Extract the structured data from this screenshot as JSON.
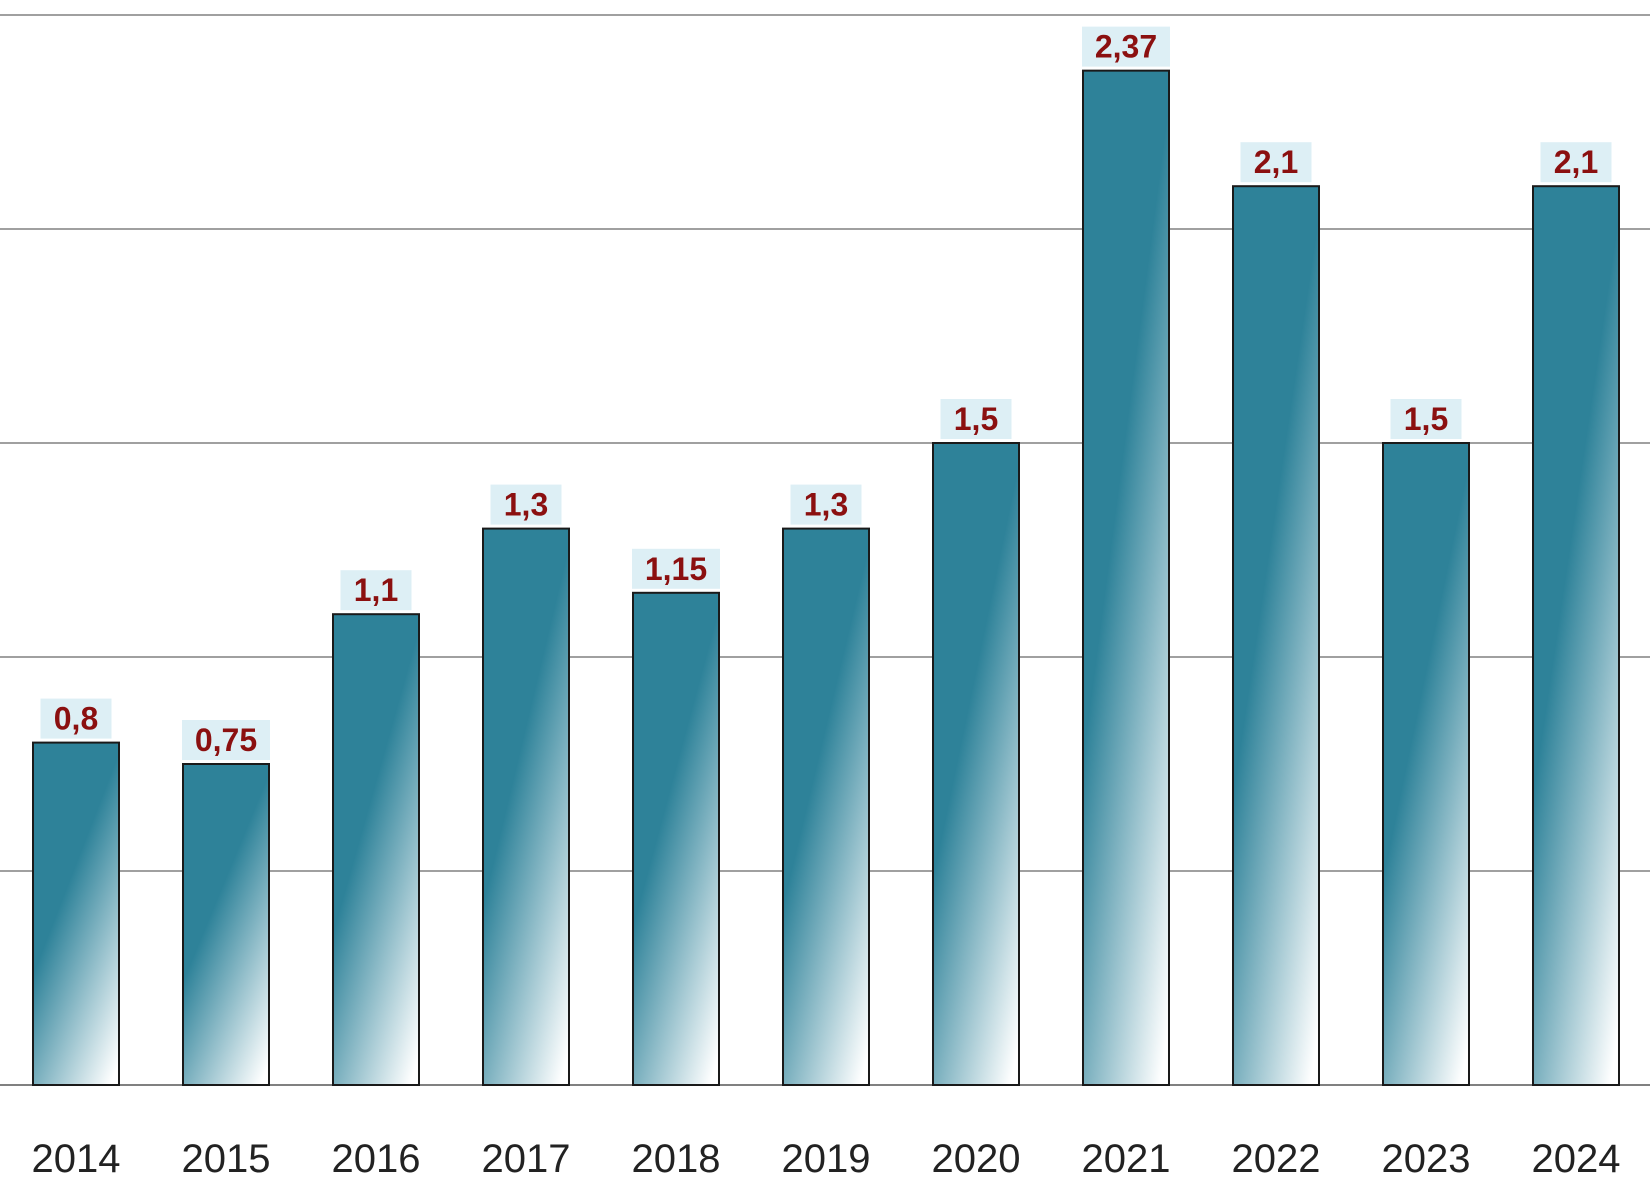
{
  "chart_data": {
    "type": "bar",
    "categories": [
      "2014",
      "2015",
      "2016",
      "2017",
      "2018",
      "2019",
      "2020",
      "2021",
      "2022",
      "2023",
      "2024"
    ],
    "values": [
      0.8,
      0.75,
      1.1,
      1.3,
      1.15,
      1.3,
      1.5,
      2.37,
      2.1,
      1.5,
      2.1
    ],
    "data_labels": [
      "0,8",
      "0,75",
      "1,1",
      "1,3",
      "1,15",
      "1,3",
      "1,5",
      "2,37",
      "2,1",
      "1,5",
      "2,1"
    ],
    "title": "",
    "xlabel": "",
    "ylabel": "",
    "ylim": [
      0,
      2.5
    ],
    "grid": true,
    "gridline_values": [
      0,
      0.5,
      1.0,
      1.5,
      2.0,
      2.5
    ],
    "legend": "none",
    "colors": {
      "bar_top": "#2E8299",
      "bar_bottom": "#FFFFFF",
      "bar_outline": "#1A1A1A",
      "label_text": "#8B1010",
      "label_background": "#DDEFF5",
      "gridline": "#808080",
      "tick_text": "#222222"
    }
  }
}
